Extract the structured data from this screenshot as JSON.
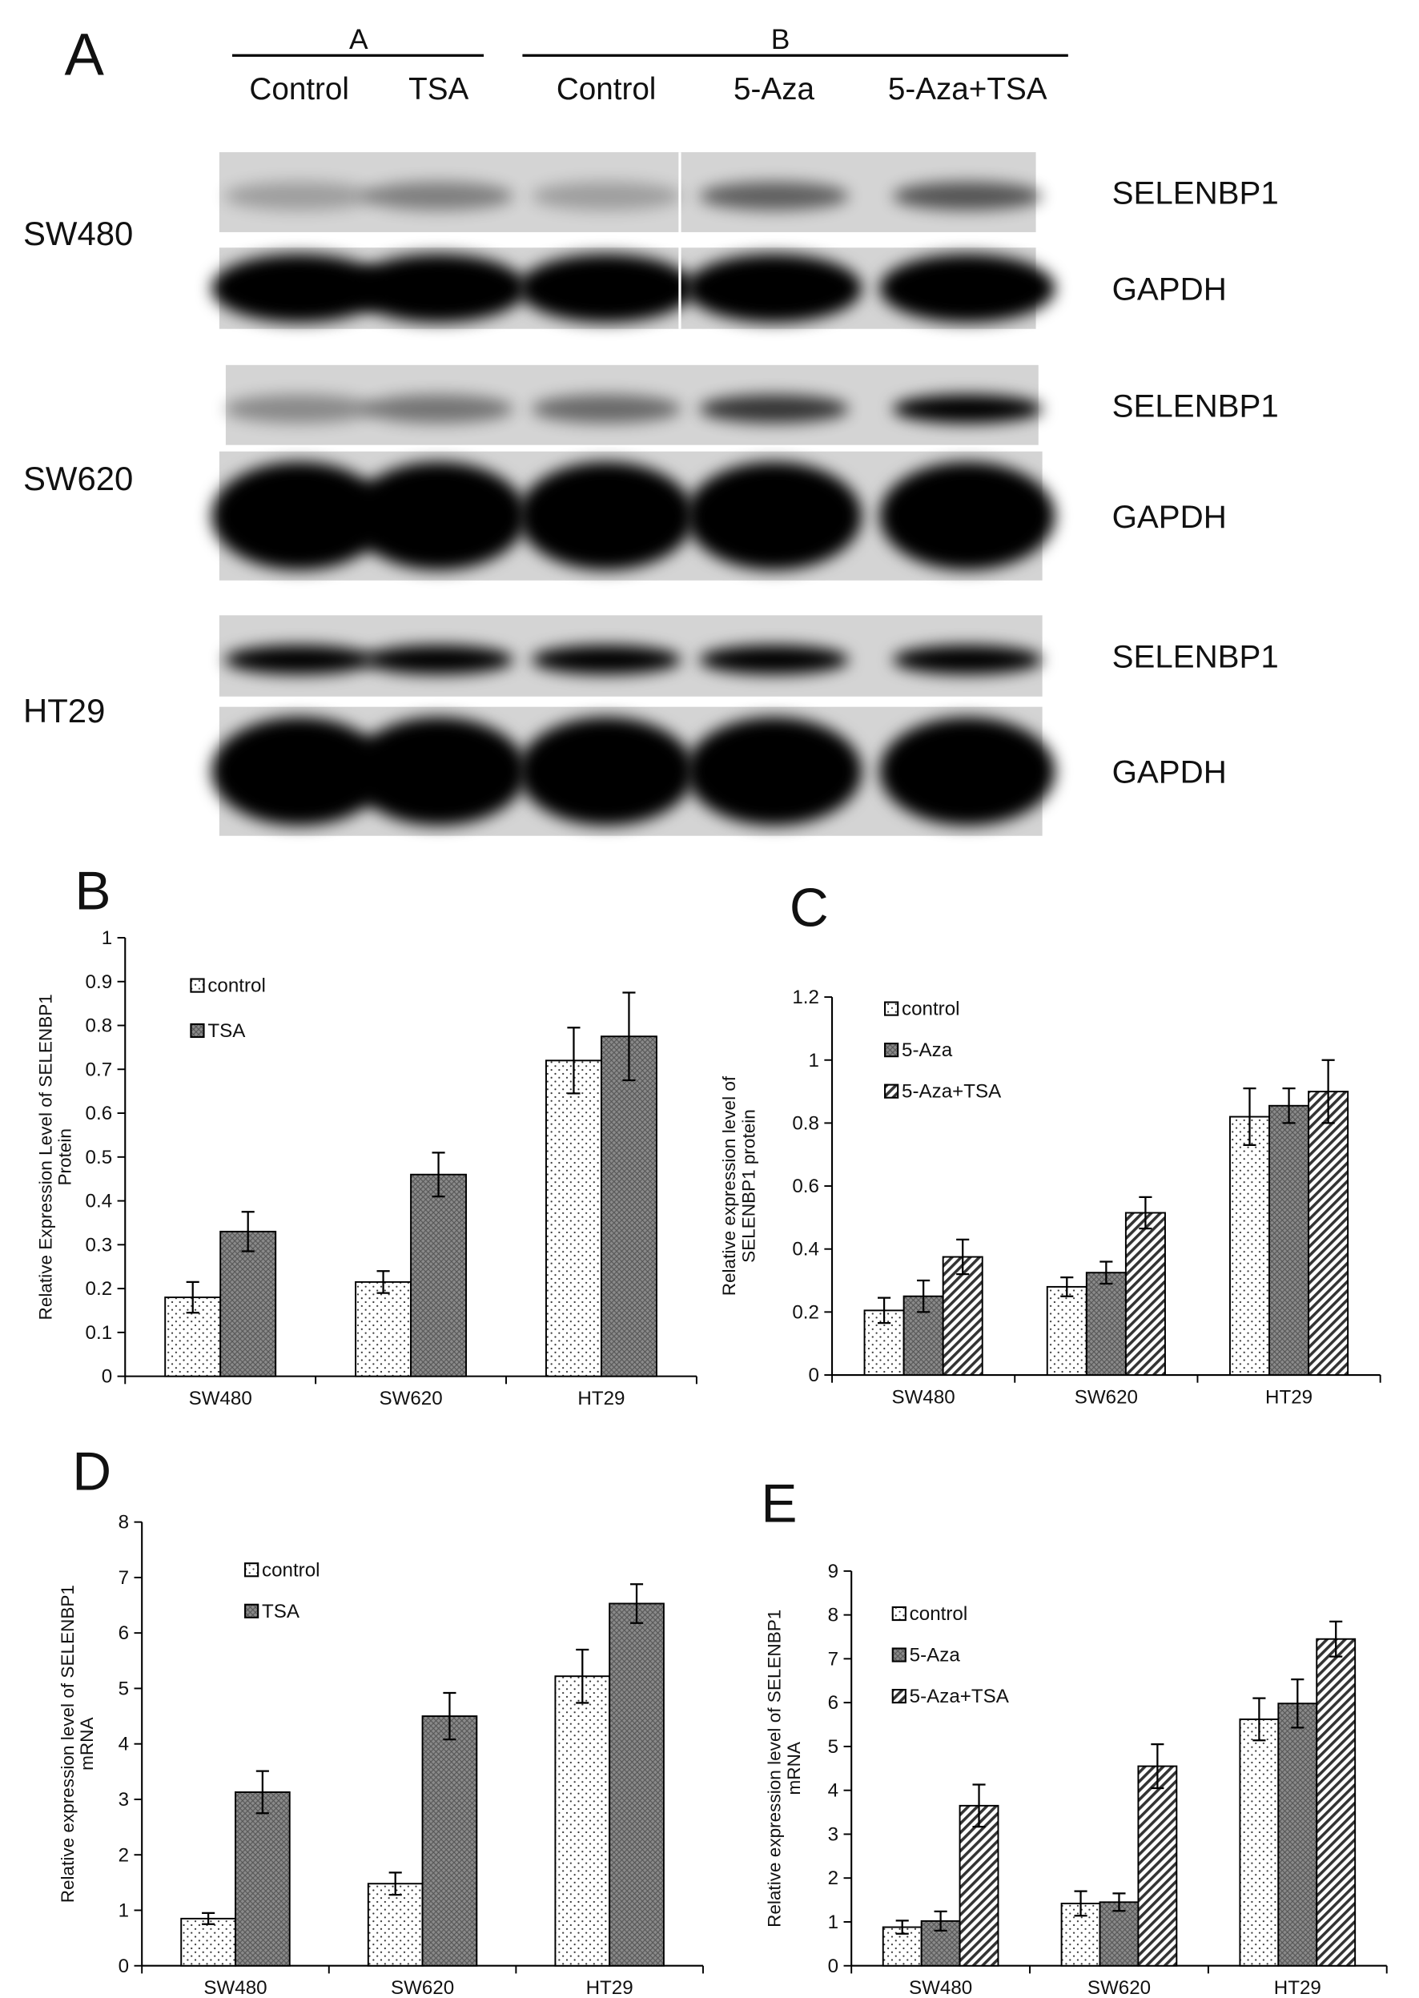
{
  "blot": {
    "panel_label": "A",
    "groups": [
      {
        "label": "A",
        "lanes": [
          "Control",
          "TSA"
        ]
      },
      {
        "label": "B",
        "lanes": [
          "Control",
          "5-Aza",
          "5-Aza+TSA"
        ]
      }
    ],
    "rows": [
      {
        "cell_line": "SW480",
        "proteins": [
          "SELENBP1",
          "GAPDH"
        ]
      },
      {
        "cell_line": "SW620",
        "proteins": [
          "SELENBP1",
          "GAPDH"
        ]
      },
      {
        "cell_line": "HT29",
        "proteins": [
          "SELENBP1",
          "GAPDH"
        ]
      }
    ]
  },
  "chart_data": [
    {
      "type": "bar",
      "panel_label": "B",
      "ylabel": [
        "Relative Expression Level of SELENBP1",
        "Protein"
      ],
      "categories": [
        "SW480",
        "SW620",
        "HT29"
      ],
      "series": [
        {
          "name": "control",
          "pattern": "dots",
          "values": [
            0.18,
            0.215,
            0.72
          ],
          "errors": [
            0.035,
            0.025,
            0.075
          ]
        },
        {
          "name": "TSA",
          "pattern": "cross",
          "values": [
            0.33,
            0.46,
            0.775
          ],
          "errors": [
            0.045,
            0.05,
            0.1
          ]
        }
      ],
      "ylim": [
        0,
        1
      ],
      "yticks": [
        0,
        0.1,
        0.2,
        0.3,
        0.4,
        0.5,
        0.6,
        0.7,
        0.8,
        0.9,
        1
      ]
    },
    {
      "type": "bar",
      "panel_label": "C",
      "ylabel": [
        "Relative expression level of",
        "SELENBP1 protein"
      ],
      "categories": [
        "SW480",
        "SW620",
        "HT29"
      ],
      "series": [
        {
          "name": "control",
          "pattern": "dots",
          "values": [
            0.205,
            0.28,
            0.82
          ],
          "errors": [
            0.04,
            0.03,
            0.09
          ]
        },
        {
          "name": "5-Aza",
          "pattern": "cross",
          "values": [
            0.25,
            0.325,
            0.855
          ],
          "errors": [
            0.05,
            0.035,
            0.055
          ]
        },
        {
          "name": "5-Aza+TSA",
          "pattern": "stripes",
          "values": [
            0.375,
            0.515,
            0.9
          ],
          "errors": [
            0.055,
            0.05,
            0.1
          ]
        }
      ],
      "ylim": [
        0,
        1.2
      ],
      "yticks": [
        0,
        0.2,
        0.4,
        0.6,
        0.8,
        1,
        1.2
      ]
    },
    {
      "type": "bar",
      "panel_label": "D",
      "ylabel": [
        "Relative expression level of SELENBP1",
        "mRNA"
      ],
      "categories": [
        "SW480",
        "SW620",
        "HT29"
      ],
      "series": [
        {
          "name": "control",
          "pattern": "dots",
          "values": [
            0.85,
            1.48,
            5.22
          ],
          "errors": [
            0.1,
            0.2,
            0.48
          ]
        },
        {
          "name": "TSA",
          "pattern": "cross",
          "values": [
            3.13,
            4.5,
            6.53
          ],
          "errors": [
            0.38,
            0.42,
            0.35
          ]
        }
      ],
      "ylim": [
        0,
        8
      ],
      "yticks": [
        0,
        1,
        2,
        3,
        4,
        5,
        6,
        7,
        8
      ]
    },
    {
      "type": "bar",
      "panel_label": "E",
      "ylabel": [
        "Relative expression level of SELENBP1",
        "mRNA"
      ],
      "categories": [
        "SW480",
        "SW620",
        "HT29"
      ],
      "series": [
        {
          "name": "control",
          "pattern": "dots",
          "values": [
            0.88,
            1.42,
            5.62
          ],
          "errors": [
            0.15,
            0.28,
            0.48
          ]
        },
        {
          "name": "5-Aza",
          "pattern": "cross",
          "values": [
            1.02,
            1.45,
            5.98
          ],
          "errors": [
            0.22,
            0.2,
            0.55
          ]
        },
        {
          "name": "5-Aza+TSA",
          "pattern": "stripes",
          "values": [
            3.65,
            4.55,
            7.45
          ],
          "errors": [
            0.48,
            0.5,
            0.4
          ]
        }
      ],
      "ylim": [
        0,
        9
      ],
      "yticks": [
        0,
        1,
        2,
        3,
        4,
        5,
        6,
        7,
        8,
        9
      ]
    }
  ]
}
